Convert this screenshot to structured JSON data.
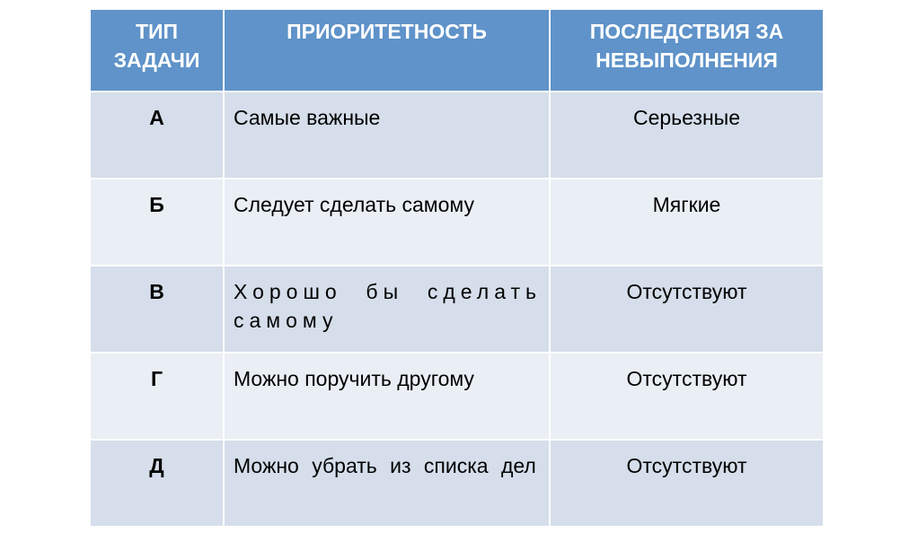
{
  "table": {
    "headers": [
      "ТИП ЗАДАЧИ",
      "ПРИОРИТЕТНОСТЬ",
      "ПОСЛЕДСТВИЯ ЗА НЕВЫПОЛНЕНИЯ"
    ],
    "rows": [
      {
        "type": "А",
        "priority": "Самые важные",
        "consequences": "Серьезные"
      },
      {
        "type": "Б",
        "priority": "Следует сделать самому",
        "consequences": "Мягкие"
      },
      {
        "type": "В",
        "priority": "Хорошо бы сделать самому",
        "consequences": "Отсутствуют"
      },
      {
        "type": "Г",
        "priority": "Можно поручить другому",
        "consequences": "Отсутствуют"
      },
      {
        "type": "Д",
        "priority": "Можно убрать из списка дел",
        "consequences": "Отсутствуют"
      }
    ]
  },
  "colors": {
    "header": "#5f93c9",
    "row_odd": "#d5deea",
    "row_even": "#eaeff5"
  }
}
